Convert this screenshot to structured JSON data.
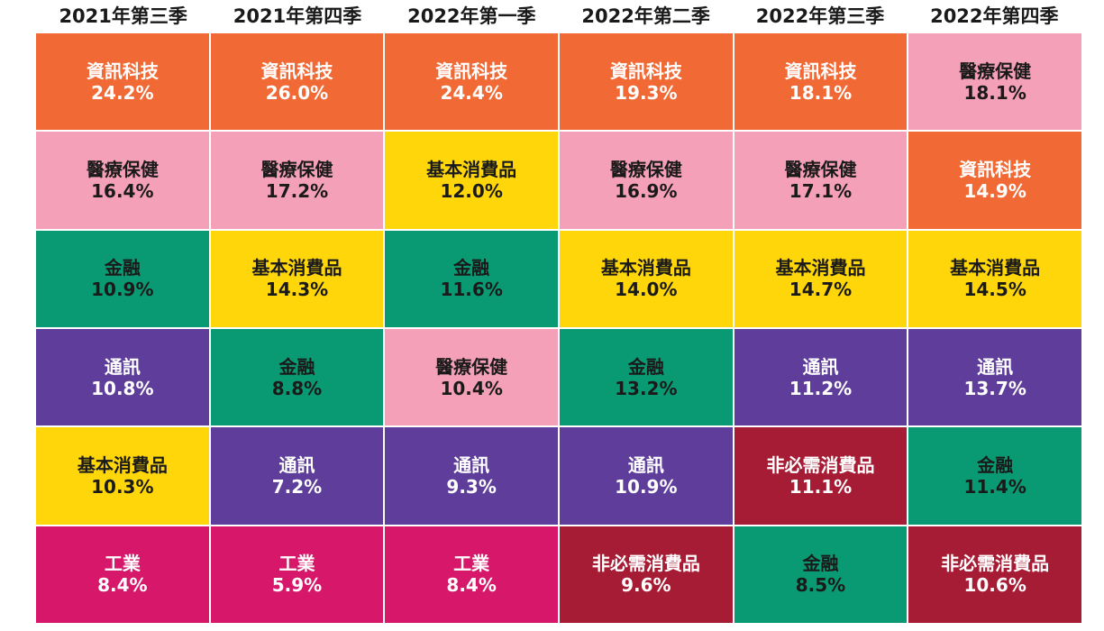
{
  "colors": {
    "資訊科技": {
      "bg": "#F16A36",
      "fg": "#ffffff"
    },
    "醫療保健": {
      "bg": "#F5A0B9",
      "fg": "#1a1a1a"
    },
    "金融": {
      "bg": "#0A9A73",
      "fg": "#1a1a1a"
    },
    "通訊": {
      "bg": "#5E3E9A",
      "fg": "#ffffff"
    },
    "基本消費品": {
      "bg": "#FFD60A",
      "fg": "#1a1a1a"
    },
    "工業": {
      "bg": "#D6176A",
      "fg": "#ffffff"
    },
    "非必需消費品": {
      "bg": "#A61C35",
      "fg": "#ffffff"
    }
  },
  "chart_data": {
    "type": "table",
    "columns": [
      {
        "label": "2021年第三季",
        "cells": [
          {
            "sector": "資訊科技",
            "value": "24.2%"
          },
          {
            "sector": "醫療保健",
            "value": "16.4%"
          },
          {
            "sector": "金融",
            "value": "10.9%"
          },
          {
            "sector": "通訊",
            "value": "10.8%"
          },
          {
            "sector": "基本消費品",
            "value": "10.3%"
          },
          {
            "sector": "工業",
            "value": "8.4%"
          }
        ]
      },
      {
        "label": "2021年第四季",
        "cells": [
          {
            "sector": "資訊科技",
            "value": "26.0%"
          },
          {
            "sector": "醫療保健",
            "value": "17.2%"
          },
          {
            "sector": "基本消費品",
            "value": "14.3%"
          },
          {
            "sector": "金融",
            "value": "8.8%"
          },
          {
            "sector": "通訊",
            "value": "7.2%"
          },
          {
            "sector": "工業",
            "value": "5.9%"
          }
        ]
      },
      {
        "label": "2022年第一季",
        "cells": [
          {
            "sector": "資訊科技",
            "value": "24.4%"
          },
          {
            "sector": "基本消費品",
            "value": "12.0%"
          },
          {
            "sector": "金融",
            "value": "11.6%"
          },
          {
            "sector": "醫療保健",
            "value": "10.4%"
          },
          {
            "sector": "通訊",
            "value": "9.3%"
          },
          {
            "sector": "工業",
            "value": "8.4%"
          }
        ]
      },
      {
        "label": "2022年第二季",
        "cells": [
          {
            "sector": "資訊科技",
            "value": "19.3%"
          },
          {
            "sector": "醫療保健",
            "value": "16.9%"
          },
          {
            "sector": "基本消費品",
            "value": "14.0%"
          },
          {
            "sector": "金融",
            "value": "13.2%"
          },
          {
            "sector": "通訊",
            "value": "10.9%"
          },
          {
            "sector": "非必需消費品",
            "value": "9.6%"
          }
        ]
      },
      {
        "label": "2022年第三季",
        "cells": [
          {
            "sector": "資訊科技",
            "value": "18.1%"
          },
          {
            "sector": "醫療保健",
            "value": "17.1%"
          },
          {
            "sector": "基本消費品",
            "value": "14.7%"
          },
          {
            "sector": "通訊",
            "value": "11.2%"
          },
          {
            "sector": "非必需消費品",
            "value": "11.1%"
          },
          {
            "sector": "金融",
            "value": "8.5%"
          }
        ]
      },
      {
        "label": "2022年第四季",
        "cells": [
          {
            "sector": "醫療保健",
            "value": "18.1%"
          },
          {
            "sector": "資訊科技",
            "value": "14.9%"
          },
          {
            "sector": "基本消費品",
            "value": "14.5%"
          },
          {
            "sector": "通訊",
            "value": "13.7%"
          },
          {
            "sector": "金融",
            "value": "11.4%"
          },
          {
            "sector": "非必需消費品",
            "value": "10.6%"
          }
        ]
      }
    ]
  }
}
